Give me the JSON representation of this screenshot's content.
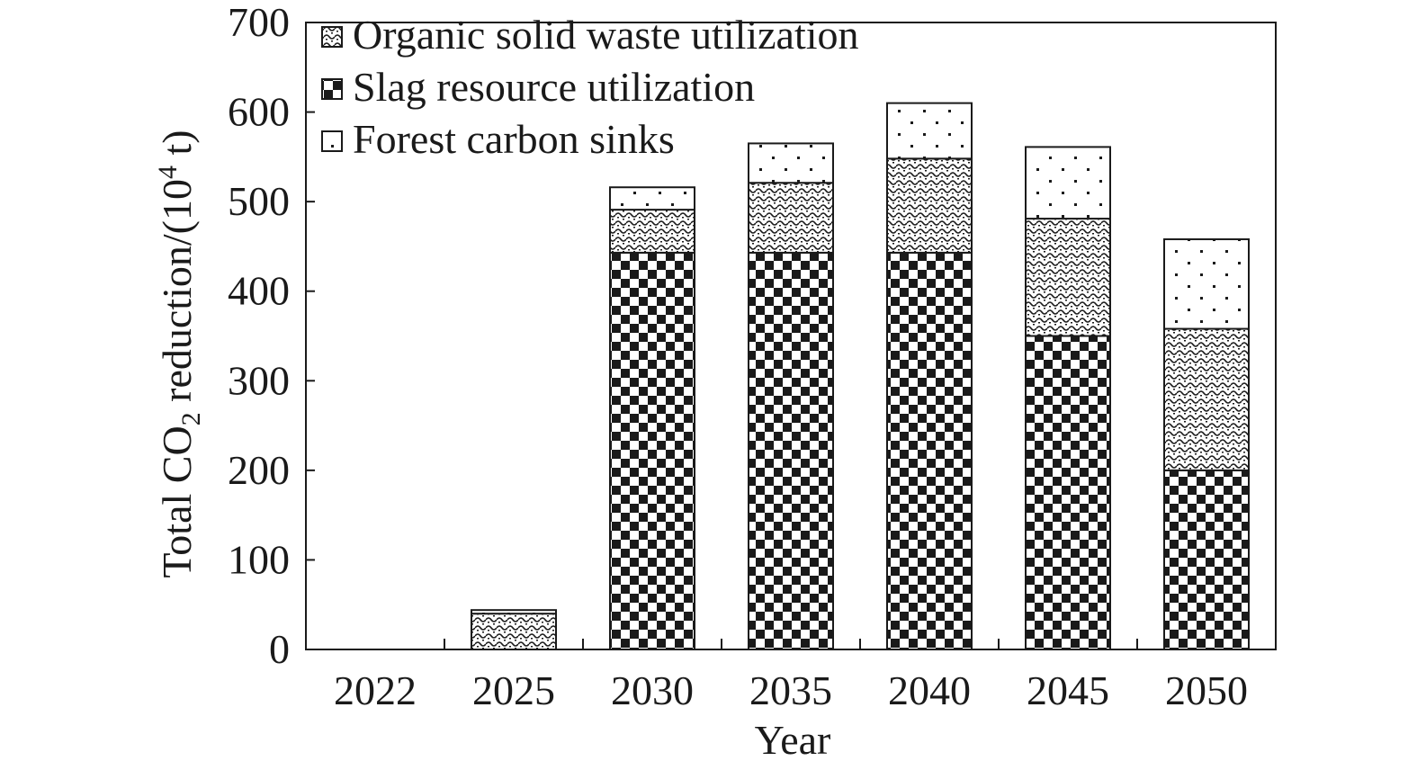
{
  "chart_data": {
    "type": "bar",
    "stacked": true,
    "title": "",
    "xlabel": "Year",
    "ylabel": {
      "prefix": "Total CO",
      "subscript": "2",
      "middle": " reduction/(10",
      "superscript": "4",
      "suffix": " t)"
    },
    "ylim": [
      0,
      700
    ],
    "yticks": [
      "0",
      "100",
      "200",
      "300",
      "400",
      "500",
      "600",
      "700"
    ],
    "categories": [
      "2022",
      "2025",
      "2030",
      "2035",
      "2040",
      "2045",
      "2050"
    ],
    "series": [
      {
        "name": "Slag resource utilization",
        "pattern": "checker",
        "values": [
          0,
          0,
          443,
          443,
          443,
          350,
          200
        ]
      },
      {
        "name": "Organic solid waste utilization",
        "pattern": "wave",
        "values": [
          0,
          40,
          48,
          78,
          105,
          131,
          158
        ]
      },
      {
        "name": "Forest carbon sinks",
        "pattern": "dots",
        "values": [
          0,
          4,
          25,
          44,
          62,
          80,
          100
        ]
      }
    ],
    "legend": {
      "placement": "top-left",
      "order": [
        "Organic solid waste utilization",
        "Slag resource utilization",
        "Forest carbon sinks"
      ]
    },
    "grid": false,
    "colors": {
      "ink": "#1a1a1a",
      "background": "#ffffff"
    }
  }
}
